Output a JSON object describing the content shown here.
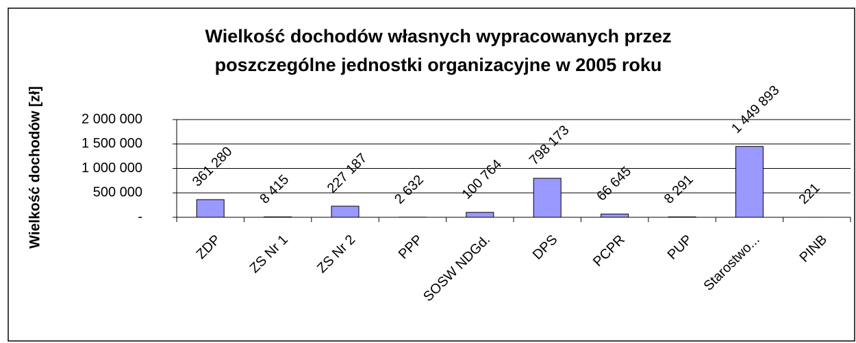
{
  "chart_data": {
    "type": "bar",
    "title": [
      "Wielkość dochodów własnych wypracowanych przez",
      "poszczególne jednostki organizacyjne w 2005 roku"
    ],
    "ylabel": "Wielkość dochodów [zł]",
    "categories": [
      "ZDP",
      "ZS Nr 1",
      "ZS Nr 2",
      "PPP",
      "SOSW NDGd.",
      "DPS",
      "PCPR",
      "PUP",
      "Starostwo...",
      "PINB"
    ],
    "values": [
      361280,
      8415,
      227187,
      2632,
      100764,
      798173,
      66645,
      8291,
      1449893,
      221
    ],
    "value_labels": [
      "361 280",
      "8 415",
      "227 187",
      "2 632",
      "100 764",
      "798 173",
      "66 645",
      "8 291",
      "1 449 893",
      "221"
    ],
    "color": "#9999ff",
    "ylim": [
      0,
      2000000
    ],
    "yticks": [
      {
        "value": 0,
        "label": "-"
      },
      {
        "value": 500000,
        "label": "500 000"
      },
      {
        "value": 1000000,
        "label": "1 000 000"
      },
      {
        "value": 1500000,
        "label": "1 500 000"
      },
      {
        "value": 2000000,
        "label": "2 000 000"
      }
    ],
    "grid": true
  }
}
